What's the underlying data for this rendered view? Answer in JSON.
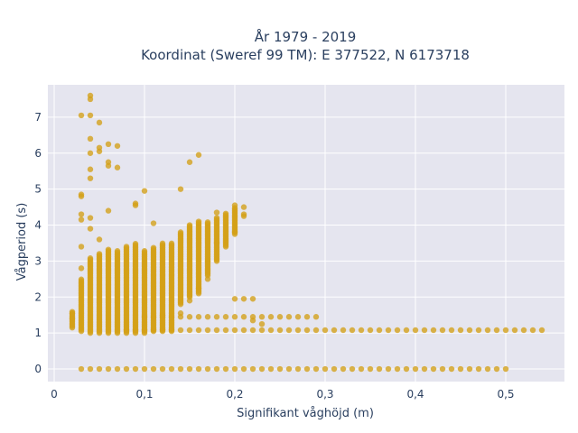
{
  "chart_data": {
    "type": "scatter",
    "title_lines": [
      "År 1979 - 2019",
      "Koordinat (Sweref 99 TM): E 377522, N 6173718"
    ],
    "xlabel": "Signifikant våghöjd (m)",
    "ylabel": "Vågperiod (s)",
    "xlim": [
      -0.007,
      0.565
    ],
    "ylim": [
      -0.35,
      7.9
    ],
    "x_ticks": [
      0,
      0.1,
      0.2,
      0.3,
      0.4,
      0.5
    ],
    "x_tick_labels": [
      "0",
      "0,1",
      "0,2",
      "0,3",
      "0,4",
      "0,5"
    ],
    "y_ticks": [
      0,
      1,
      2,
      3,
      4,
      5,
      6,
      7
    ],
    "y_tick_labels": [
      "0",
      "1",
      "2",
      "3",
      "4",
      "5",
      "6",
      "7"
    ],
    "grid": true,
    "colors": {
      "marker": "#d4a017",
      "plot_bg": "#e5e5ef",
      "grid": "#ffffff",
      "text": "#2a3f5f"
    },
    "columns": [
      {
        "x": 0.02,
        "ymin": 1.15,
        "ymax": 1.6
      },
      {
        "x": 0.03,
        "ymin": 1.05,
        "ymax": 2.5
      },
      {
        "x": 0.04,
        "ymin": 1.0,
        "ymax": 3.1
      },
      {
        "x": 0.05,
        "ymin": 1.0,
        "ymax": 3.2
      },
      {
        "x": 0.06,
        "ymin": 1.0,
        "ymax": 3.35
      },
      {
        "x": 0.07,
        "ymin": 1.0,
        "ymax": 3.3
      },
      {
        "x": 0.08,
        "ymin": 1.0,
        "ymax": 3.4
      },
      {
        "x": 0.09,
        "ymin": 1.0,
        "ymax": 3.5
      },
      {
        "x": 0.1,
        "ymin": 1.0,
        "ymax": 3.3
      },
      {
        "x": 0.11,
        "ymin": 1.05,
        "ymax": 3.4
      },
      {
        "x": 0.12,
        "ymin": 1.05,
        "ymax": 3.5
      },
      {
        "x": 0.13,
        "ymin": 1.05,
        "ymax": 3.5
      },
      {
        "x": 0.14,
        "ymin": 1.8,
        "ymax": 3.8
      },
      {
        "x": 0.15,
        "ymin": 2.0,
        "ymax": 4.0
      },
      {
        "x": 0.16,
        "ymin": 2.1,
        "ymax": 4.1
      },
      {
        "x": 0.17,
        "ymin": 2.6,
        "ymax": 4.1
      },
      {
        "x": 0.18,
        "ymin": 3.0,
        "ymax": 4.2
      },
      {
        "x": 0.19,
        "ymin": 3.4,
        "ymax": 4.35
      },
      {
        "x": 0.2,
        "ymin": 3.8,
        "ymax": 4.5
      }
    ],
    "lower_band": {
      "y": 1.08,
      "x_start": 0.08,
      "x_end": 0.54,
      "step": 0.01
    },
    "mid_band": {
      "y": 1.45,
      "x_start": 0.1,
      "x_end": 0.29,
      "step": 0.01
    },
    "zero_row": {
      "y": 0,
      "x_start": 0.03,
      "x_end": 0.5,
      "step": 0.01
    },
    "points": [
      [
        0.04,
        7.6
      ],
      [
        0.04,
        7.5
      ],
      [
        0.03,
        7.05
      ],
      [
        0.04,
        7.05
      ],
      [
        0.05,
        6.85
      ],
      [
        0.04,
        6.4
      ],
      [
        0.06,
        6.25
      ],
      [
        0.07,
        6.2
      ],
      [
        0.05,
        6.15
      ],
      [
        0.05,
        6.05
      ],
      [
        0.04,
        6.0
      ],
      [
        0.06,
        5.75
      ],
      [
        0.06,
        5.65
      ],
      [
        0.07,
        5.6
      ],
      [
        0.04,
        5.55
      ],
      [
        0.04,
        5.3
      ],
      [
        0.16,
        5.95
      ],
      [
        0.15,
        5.75
      ],
      [
        0.14,
        5.0
      ],
      [
        0.1,
        4.95
      ],
      [
        0.03,
        4.85
      ],
      [
        0.03,
        4.8
      ],
      [
        0.09,
        4.6
      ],
      [
        0.09,
        4.55
      ],
      [
        0.06,
        4.4
      ],
      [
        0.03,
        4.3
      ],
      [
        0.04,
        4.2
      ],
      [
        0.03,
        4.15
      ],
      [
        0.11,
        4.05
      ],
      [
        0.04,
        3.9
      ],
      [
        0.05,
        3.6
      ],
      [
        0.03,
        3.4
      ],
      [
        0.03,
        2.8
      ],
      [
        0.21,
        4.5
      ],
      [
        0.21,
        4.3
      ],
      [
        0.21,
        4.25
      ],
      [
        0.2,
        4.55
      ],
      [
        0.2,
        3.75
      ],
      [
        0.2,
        3.8
      ],
      [
        0.18,
        4.35
      ],
      [
        0.18,
        3.5
      ],
      [
        0.17,
        3.0
      ],
      [
        0.17,
        2.5
      ],
      [
        0.16,
        2.25
      ],
      [
        0.15,
        1.9
      ],
      [
        0.14,
        1.55
      ],
      [
        0.12,
        1.5
      ],
      [
        0.2,
        1.95
      ],
      [
        0.21,
        1.95
      ],
      [
        0.22,
        1.95
      ],
      [
        0.22,
        1.35
      ],
      [
        0.23,
        1.25
      ],
      [
        0.02,
        1.4
      ],
      [
        0.02,
        1.55
      ]
    ]
  }
}
